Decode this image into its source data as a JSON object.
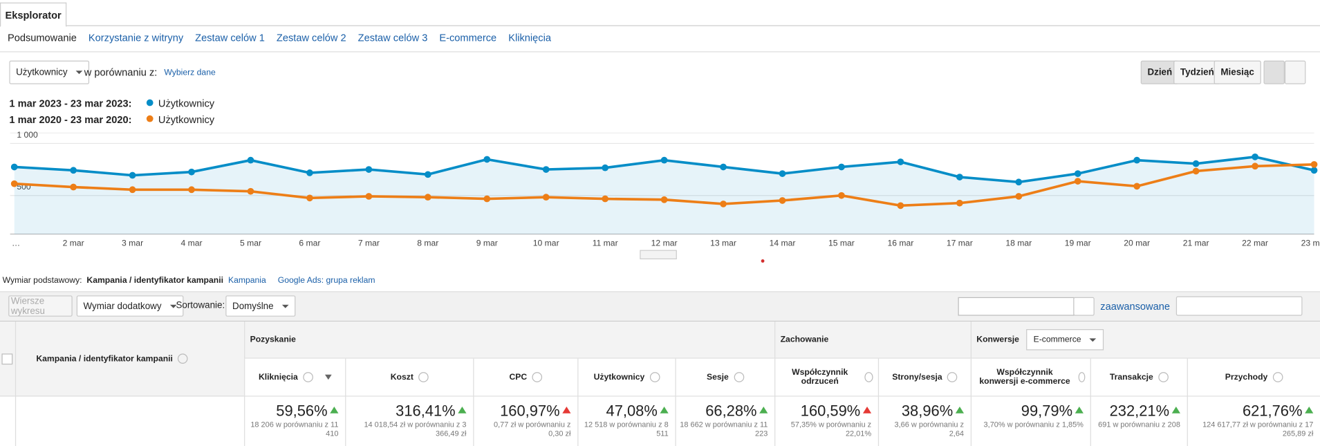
{
  "tab": "Eksplorator",
  "nav": [
    "Podsumowanie",
    "Korzystanie z witryny",
    "Zestaw celów 1",
    "Zestaw celów 2",
    "Zestaw celów 3",
    "E-commerce",
    "Kliknięcia"
  ],
  "controls": {
    "metric": "Użytkownicy",
    "compare": "w porównaniu z:",
    "pick_data": "Wybierz dane",
    "periods": [
      "Dzień",
      "Tydzień",
      "Miesiąc"
    ]
  },
  "chart_data": {
    "type": "line",
    "categories": [
      "…",
      "2 mar",
      "3 mar",
      "4 mar",
      "5 mar",
      "6 mar",
      "7 mar",
      "8 mar",
      "9 mar",
      "10 mar",
      "11 mar",
      "12 mar",
      "13 mar",
      "14 mar",
      "15 mar",
      "16 mar",
      "17 mar",
      "18 mar",
      "19 mar",
      "20 mar",
      "21 mar",
      "22 mar",
      "23 mar"
    ],
    "series": [
      {
        "name": "Użytkownicy",
        "period": "1 mar 2023 - 23 mar 2023:",
        "color": "#058dc7",
        "values": [
          774,
          742,
          694,
          726,
          839,
          718,
          750,
          702,
          847,
          750,
          766,
          839,
          774,
          710,
          774,
          823,
          677,
          629,
          710,
          839,
          806,
          871,
          742
        ]
      },
      {
        "name": "Użytkownicy",
        "period": "1 mar 2020 - 23 mar 2020:",
        "color": "#ed7e17",
        "values": [
          613,
          581,
          556,
          556,
          540,
          476,
          492,
          484,
          468,
          484,
          468,
          460,
          419,
          452,
          500,
          403,
          427,
          492,
          637,
          589,
          734,
          782,
          798
        ]
      }
    ],
    "ylim": [
      130,
      1100
    ],
    "yticks": [
      500,
      {
        "value": 1000,
        "label": "1 000"
      }
    ],
    "grid": true,
    "area": true
  },
  "dimension": {
    "label": "Wymiar podstawowy:",
    "options": [
      "Kampania / identyfikator kampanii",
      "Kampania",
      "Google Ads: grupa reklam"
    ]
  },
  "toolbar": {
    "chart_rows": "Wiersze wykresu",
    "secondary": "Wymiar dodatkowy",
    "sort_label": "Sortowanie:",
    "sort": "Domyślne",
    "advanced": "zaawansowane"
  },
  "table": {
    "dimension": "Kampania / identyfikator kampanii",
    "groups": [
      {
        "name": "Pozyskanie",
        "columns": [
          {
            "name": "Kliknięcia",
            "sorted": true,
            "change": "59,56%",
            "detail": "18 206 w porównaniu z 11 410",
            "good": true
          },
          {
            "name": "Koszt",
            "change": "316,41%",
            "detail": "14 018,54 zł w porównaniu z 3 366,49 zł",
            "good": true
          },
          {
            "name": "CPC",
            "change": "160,97%",
            "detail": "0,77 zł w porównaniu z 0,30 zł",
            "good": false
          },
          {
            "name": "Użytkownicy",
            "change": "47,08%",
            "detail": "12 518 w porównaniu z 8 511",
            "good": true
          },
          {
            "name": "Sesje",
            "change": "66,28%",
            "detail": "18 662 w porównaniu z 11 223",
            "good": true
          }
        ]
      },
      {
        "name": "Zachowanie",
        "columns": [
          {
            "name": "Współczynnik odrzuceń",
            "change": "160,59%",
            "detail": "57,35% w porównaniu z 22,01%",
            "good": false
          },
          {
            "name": "Strony/sesja",
            "change": "38,96%",
            "detail": "3,66 w porównaniu z 2,64",
            "good": true
          }
        ]
      },
      {
        "name": "Konwersje",
        "select": "E-commerce",
        "columns": [
          {
            "name": "Współczynnik konwersji e-commerce",
            "change": "99,79%",
            "detail": "3,70% w porównaniu z 1,85%",
            "good": true
          },
          {
            "name": "Transakcje",
            "change": "232,21%",
            "detail": "691 w porównaniu z 208",
            "good": true
          },
          {
            "name": "Przychody",
            "change": "621,76%",
            "detail": "124 617,77 zł w porównaniu z 17 265,89 zł",
            "good": true
          }
        ]
      }
    ]
  }
}
